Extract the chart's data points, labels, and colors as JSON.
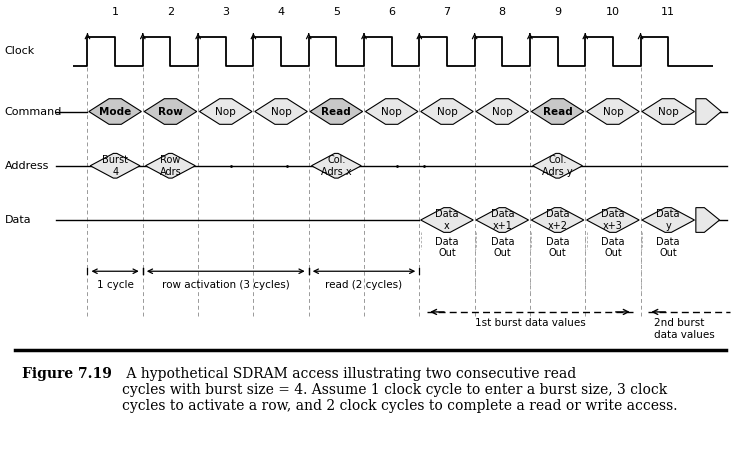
{
  "clock_numbers": [
    "1",
    "2",
    "3",
    "4",
    "5",
    "6",
    "7",
    "8",
    "9",
    "10",
    "11"
  ],
  "commands": [
    "Mode",
    "Row",
    "Nop",
    "Nop",
    "Read",
    "Nop",
    "Nop",
    "Nop",
    "Read",
    "Nop",
    "Nop"
  ],
  "commands_bold": [
    true,
    true,
    false,
    false,
    true,
    false,
    false,
    false,
    true,
    false,
    false
  ],
  "address_boxes": [
    {
      "text": "Burst\n4",
      "cycle": 1
    },
    {
      "text": "Row\nAdrs",
      "cycle": 2
    },
    {
      "text": "Col.\nAdrs x",
      "cycle": 5
    },
    {
      "text": "Col.\nAdrs y",
      "cycle": 9
    }
  ],
  "data_boxes": [
    {
      "text": "Data\nx",
      "cycle": 7
    },
    {
      "text": "Data\nx+1",
      "cycle": 8
    },
    {
      "text": "Data\nx+2",
      "cycle": 9
    },
    {
      "text": "Data\nx+3",
      "cycle": 10
    },
    {
      "text": "Data\ny",
      "cycle": 11
    }
  ],
  "bg_color": "#ffffff",
  "box_normal_fill": "#e8e8e8",
  "box_bold_fill": "#c8c8c8",
  "line_color": "#000000",
  "number_color": "#000000",
  "caption_bold": "Figure 7.19",
  "caption_rest": " A hypothetical SDRAM access illustrating two consecutive read\ncycles with burst size = 4. Assume 1 clock cycle to enter a burst size, 3 clock\ncycles to activate a row, and 2 clock cycles to complete a read or write access."
}
